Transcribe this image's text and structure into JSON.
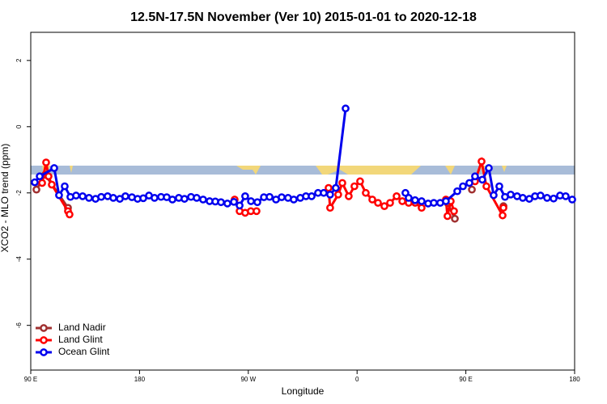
{
  "chart_data": {
    "type": "line",
    "title": "12.5N-17.5N November (Ver 10)   2015-01-01 to 2020-12-18",
    "xlabel": "Longitude",
    "ylabel": "XCO2 - MLO trend (ppm)",
    "xlim": [
      90,
      540
    ],
    "ylim": [
      -7.35,
      2.85
    ],
    "xticks": [
      {
        "value": 90,
        "label": "90 E"
      },
      180,
      {
        "value": 270,
        "label": "90 W"
      },
      {
        "value": 360,
        "label": "0"
      },
      {
        "value": 450,
        "label": "90 E"
      },
      {
        "value": 540,
        "label": "180"
      }
    ],
    "yticks": [
      -6,
      -4,
      -2,
      0,
      2
    ],
    "legend": "bottom-left",
    "series": [
      {
        "name": "Land Nadir",
        "color": "#a03030",
        "x": [
          94.7,
          102,
          120.8,
          null,
          434.8,
          440.9,
          null,
          455,
          null,
          481.1
        ],
        "values": [
          -1.9,
          -1.45,
          -2.45,
          null,
          -2.3,
          -2.78,
          null,
          -1.9,
          null,
          -2.4
        ]
      },
      {
        "name": "Land Glint",
        "color": "#ff0000",
        "x": [
          99.4,
          102.7,
          104.7,
          107.4,
          120.8,
          122.1,
          null,
          258.7,
          262.8,
          267.4,
          272.1,
          276.8,
          null,
          336.4,
          337.7,
          344.4,
          347.8,
          353.1,
          357.8,
          362.5,
          367.2,
          372.6,
          377.3,
          382.6,
          387.3,
          392.7,
          397.4,
          402.7,
          408.1,
          413.4,
          null,
          433.5,
          434.8,
          437.5,
          440.2,
          null,
          457.6,
          463,
          467,
          480.4,
          481.1
        ],
        "values": [
          -1.7,
          -1.08,
          -1.5,
          -1.75,
          -2.55,
          -2.65,
          null,
          -2.2,
          -2.55,
          -2.6,
          -2.55,
          -2.55,
          null,
          -1.85,
          -2.45,
          -2.05,
          -1.7,
          -2.1,
          -1.8,
          -1.65,
          -2.0,
          -2.2,
          -2.3,
          -2.4,
          -2.3,
          -2.1,
          -2.25,
          -2.3,
          -2.3,
          -2.45,
          null,
          -2.2,
          -2.7,
          -2.25,
          -2.55,
          null,
          -1.65,
          -1.05,
          -1.8,
          -2.68,
          -2.45
        ]
      },
      {
        "name": "Ocean Glint",
        "color": "#0000ee",
        "x": [
          93.3,
          97.4,
          109.4,
          113.4,
          118.1,
          122.8,
          127.5,
          132.9,
          138.2,
          143.6,
          148.3,
          153.6,
          158.3,
          163.7,
          168.3,
          173.7,
          178.4,
          183.1,
          187.8,
          192.4,
          197.8,
          202.5,
          207.2,
          212.5,
          217.2,
          222.6,
          227.3,
          232.6,
          238,
          242.7,
          247.4,
          252.7,
          258.1,
          262.8,
          267.4,
          272.2,
          277.5,
          282.9,
          287.6,
          292.9,
          297.6,
          302.9,
          307.6,
          313,
          317.7,
          322.4,
          327.7,
          332.4,
          337.7,
          342.4,
          350.5,
          null,
          400,
          402.7,
          408,
          413.4,
          418.8,
          423.5,
          428.8,
          433.5,
          442.9,
          447.6,
          452.9,
          457.6,
          463.6,
          469,
          473,
          477.7,
          482.4,
          487.1,
          492.4,
          497.1,
          502.5,
          507.2,
          511.8,
          517.2,
          522.6,
          527.9,
          532.6,
          538
        ],
        "values": [
          -1.68,
          -1.5,
          -1.25,
          -2.07,
          -1.8,
          -2.12,
          -2.08,
          -2.1,
          -2.15,
          -2.18,
          -2.12,
          -2.1,
          -2.15,
          -2.18,
          -2.1,
          -2.13,
          -2.18,
          -2.16,
          -2.08,
          -2.15,
          -2.12,
          -2.13,
          -2.2,
          -2.15,
          -2.18,
          -2.12,
          -2.15,
          -2.2,
          -2.25,
          -2.26,
          -2.28,
          -2.32,
          -2.27,
          -2.38,
          -2.1,
          -2.25,
          -2.28,
          -2.13,
          -2.12,
          -2.2,
          -2.13,
          -2.15,
          -2.2,
          -2.15,
          -2.1,
          -2.1,
          -2.0,
          -2.0,
          -2.05,
          -1.85,
          0.55,
          null,
          -2.0,
          -2.15,
          -2.22,
          -2.25,
          -2.32,
          -2.3,
          -2.3,
          -2.25,
          -1.95,
          -1.8,
          -1.7,
          -1.5,
          -1.6,
          -1.25,
          -2.07,
          -1.8,
          -2.12,
          -2.05,
          -2.1,
          -2.15,
          -2.18,
          -2.1,
          -2.08,
          -2.15,
          -2.17,
          -2.08,
          -2.1,
          -2.2
        ]
      }
    ]
  }
}
